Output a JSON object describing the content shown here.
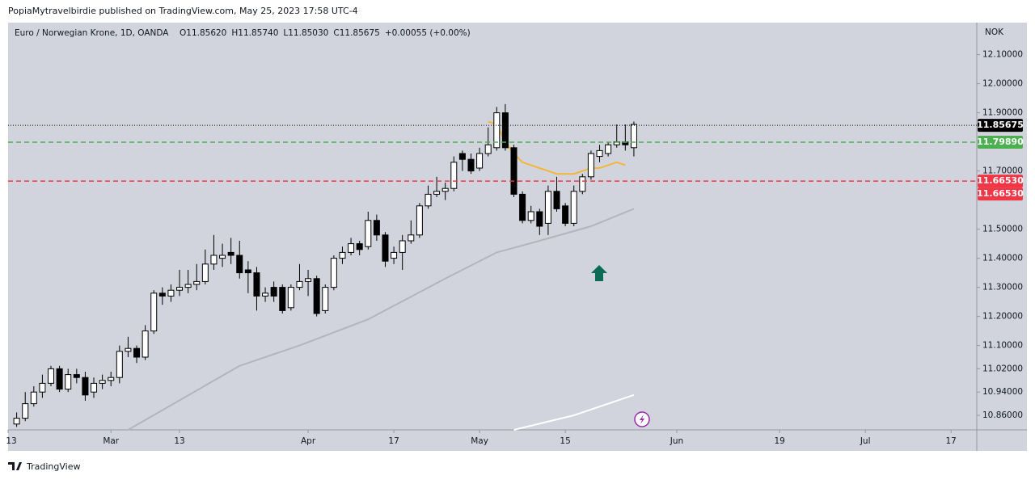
{
  "chart_data": {
    "type": "candlestick",
    "publisher": "PopiaMytravelbirdie published on TradingView.com, May 25, 2023 17:58 UTC-4",
    "title": "Euro / Norwegian Krone, 1D, OANDA",
    "ohlc_legend": [
      {
        "key": "O",
        "value": "11.85620"
      },
      {
        "key": "H",
        "value": "11.85740"
      },
      {
        "key": "L",
        "value": "11.85030"
      },
      {
        "key": "C",
        "value": "11.85675"
      }
    ],
    "change": "+0.00055 (+0.00%)",
    "currency": "NOK",
    "brand": "TradingView",
    "up_color": "#ffffff",
    "down_color": "#000000",
    "ylim": [
      10.81,
      12.21
    ],
    "yticks": [
      {
        "value": 12.1,
        "label": "12.10000"
      },
      {
        "value": 12.0,
        "label": "12.00000"
      },
      {
        "value": 11.9,
        "label": "11.90000"
      },
      {
        "value": 11.7,
        "label": "11.70000"
      },
      {
        "value": 11.5,
        "label": "11.50000"
      },
      {
        "value": 11.4,
        "label": "11.40000"
      },
      {
        "value": 11.3,
        "label": "11.30000"
      },
      {
        "value": 11.2,
        "label": "11.20000"
      },
      {
        "value": 11.1,
        "label": "11.10000"
      },
      {
        "value": 11.02,
        "label": "11.02000"
      },
      {
        "value": 10.94,
        "label": "10.94000"
      },
      {
        "value": 10.86,
        "label": "10.86000"
      }
    ],
    "xlim": [
      -1,
      112
    ],
    "xticks": [
      {
        "value": -1,
        "label": "13"
      },
      {
        "value": 11,
        "label": "Mar"
      },
      {
        "value": 19,
        "label": "13"
      },
      {
        "value": 34,
        "label": "Apr"
      },
      {
        "value": 44,
        "label": "17"
      },
      {
        "value": 54,
        "label": "May"
      },
      {
        "value": 64,
        "label": "15"
      },
      {
        "value": 77,
        "label": "Jun"
      },
      {
        "value": 89,
        "label": "19"
      },
      {
        "value": 99,
        "label": "Jul"
      },
      {
        "value": 109,
        "label": "17"
      }
    ],
    "ohlc": [
      [
        10.83,
        10.87,
        10.82,
        10.85
      ],
      [
        10.85,
        10.94,
        10.84,
        10.9
      ],
      [
        10.9,
        10.96,
        10.89,
        10.94
      ],
      [
        10.94,
        11.0,
        10.92,
        10.97
      ],
      [
        10.97,
        11.03,
        10.96,
        11.02
      ],
      [
        11.02,
        11.03,
        10.94,
        10.95
      ],
      [
        10.95,
        11.02,
        10.94,
        11.0
      ],
      [
        11.0,
        11.02,
        10.97,
        10.99
      ],
      [
        10.99,
        11.01,
        10.91,
        10.93
      ],
      [
        10.94,
        10.99,
        10.92,
        10.97
      ],
      [
        10.97,
        11.0,
        10.95,
        10.98
      ],
      [
        10.98,
        11.01,
        10.96,
        10.99
      ],
      [
        10.99,
        11.1,
        10.97,
        11.08
      ],
      [
        11.08,
        11.13,
        11.06,
        11.09
      ],
      [
        11.09,
        11.1,
        11.04,
        11.06
      ],
      [
        11.06,
        11.17,
        11.05,
        11.15
      ],
      [
        11.15,
        11.29,
        11.14,
        11.28
      ],
      [
        11.28,
        11.3,
        11.24,
        11.27
      ],
      [
        11.27,
        11.31,
        11.25,
        11.29
      ],
      [
        11.29,
        11.36,
        11.27,
        11.3
      ],
      [
        11.3,
        11.36,
        11.28,
        11.31
      ],
      [
        11.31,
        11.38,
        11.29,
        11.32
      ],
      [
        11.32,
        11.43,
        11.31,
        11.38
      ],
      [
        11.38,
        11.48,
        11.36,
        11.41
      ],
      [
        11.4,
        11.45,
        11.37,
        11.41
      ],
      [
        11.42,
        11.47,
        11.38,
        11.41
      ],
      [
        11.41,
        11.46,
        11.33,
        11.35
      ],
      [
        11.36,
        11.39,
        11.28,
        11.35
      ],
      [
        11.35,
        11.37,
        11.22,
        11.27
      ],
      [
        11.27,
        11.3,
        11.25,
        11.28
      ],
      [
        11.3,
        11.32,
        11.25,
        11.27
      ],
      [
        11.3,
        11.31,
        11.21,
        11.22
      ],
      [
        11.23,
        11.31,
        11.22,
        11.3
      ],
      [
        11.3,
        11.38,
        11.29,
        11.32
      ],
      [
        11.32,
        11.36,
        11.27,
        11.33
      ],
      [
        11.33,
        11.34,
        11.2,
        11.21
      ],
      [
        11.22,
        11.31,
        11.21,
        11.3
      ],
      [
        11.3,
        11.41,
        11.29,
        11.4
      ],
      [
        11.4,
        11.44,
        11.38,
        11.42
      ],
      [
        11.42,
        11.47,
        11.41,
        11.45
      ],
      [
        11.45,
        11.46,
        11.41,
        11.43
      ],
      [
        11.44,
        11.56,
        11.43,
        11.53
      ],
      [
        11.53,
        11.55,
        11.46,
        11.48
      ],
      [
        11.48,
        11.49,
        11.37,
        11.39
      ],
      [
        11.4,
        11.44,
        11.38,
        11.42
      ],
      [
        11.42,
        11.48,
        11.36,
        11.46
      ],
      [
        11.46,
        11.53,
        11.45,
        11.48
      ],
      [
        11.48,
        11.59,
        11.47,
        11.58
      ],
      [
        11.58,
        11.65,
        11.57,
        11.62
      ],
      [
        11.62,
        11.68,
        11.61,
        11.63
      ],
      [
        11.63,
        11.66,
        11.6,
        11.64
      ],
      [
        11.64,
        11.75,
        11.63,
        11.73
      ],
      [
        11.76,
        11.77,
        11.7,
        11.74
      ],
      [
        11.74,
        11.76,
        11.69,
        11.7
      ],
      [
        11.71,
        11.78,
        11.7,
        11.76
      ],
      [
        11.76,
        11.85,
        11.75,
        11.79
      ],
      [
        11.78,
        11.92,
        11.77,
        11.9
      ],
      [
        11.9,
        11.93,
        11.77,
        11.78
      ],
      [
        11.78,
        11.79,
        11.61,
        11.62
      ],
      [
        11.62,
        11.63,
        11.52,
        11.53
      ],
      [
        11.53,
        11.58,
        11.52,
        11.56
      ],
      [
        11.56,
        11.57,
        11.48,
        11.51
      ],
      [
        11.52,
        11.65,
        11.48,
        11.63
      ],
      [
        11.63,
        11.68,
        11.56,
        11.57
      ],
      [
        11.58,
        11.59,
        11.51,
        11.52
      ],
      [
        11.52,
        11.65,
        11.51,
        11.63
      ],
      [
        11.63,
        11.69,
        11.62,
        11.68
      ],
      [
        11.68,
        11.77,
        11.67,
        11.76
      ],
      [
        11.75,
        11.79,
        11.73,
        11.77
      ],
      [
        11.76,
        11.8,
        11.75,
        11.79
      ],
      [
        11.79,
        11.86,
        11.78,
        11.8
      ],
      [
        11.8,
        11.86,
        11.77,
        11.79
      ],
      [
        11.78,
        11.87,
        11.75,
        11.86
      ]
    ],
    "indicators": [
      {
        "color": "#f5b43c",
        "x": [
          55,
          56,
          57,
          58,
          59,
          60,
          61,
          62,
          63,
          64,
          65,
          66,
          67,
          68,
          69,
          70,
          71
        ],
        "values": [
          11.87,
          11.86,
          11.8,
          11.76,
          11.73,
          11.72,
          11.71,
          11.7,
          11.69,
          11.69,
          11.69,
          11.7,
          11.71,
          11.71,
          11.72,
          11.73,
          11.72
        ]
      },
      {
        "color": "#b2b5be",
        "x": [
          13,
          26,
          33,
          41,
          50,
          56,
          61,
          67,
          72
        ],
        "values": [
          10.81,
          11.03,
          11.1,
          11.19,
          11.33,
          11.42,
          11.46,
          11.51,
          11.57
        ]
      },
      {
        "color": "#ffffff",
        "x": [
          58,
          65,
          72
        ],
        "values": [
          10.81,
          10.86,
          10.93
        ]
      }
    ],
    "price_lines": [
      {
        "value": 11.85675,
        "labels": [
          "11.85675"
        ],
        "color": "#000000",
        "style": "dotted"
      },
      {
        "value": 11.7989,
        "labels": [
          "11.79890"
        ],
        "color": "#4caf50",
        "style": "dashed"
      },
      {
        "value": 11.6653,
        "labels": [
          "11.66530",
          "11.66530"
        ],
        "color": "#f23645",
        "style": "dashed"
      }
    ]
  }
}
